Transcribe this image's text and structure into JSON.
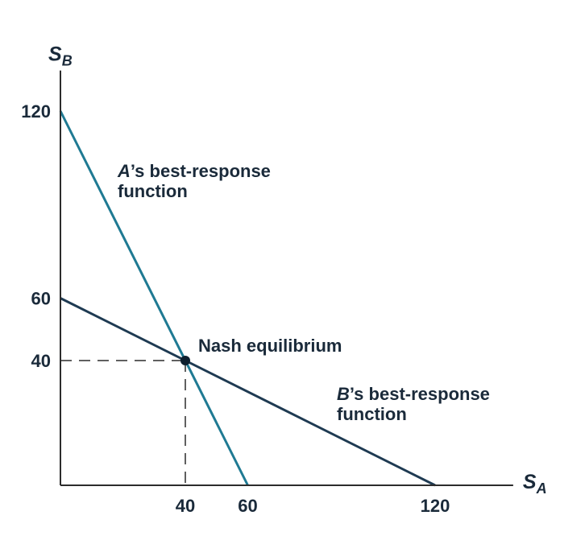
{
  "chart_data": {
    "type": "line",
    "title": "",
    "xlabel": {
      "main": "S",
      "sub": "A"
    },
    "ylabel": {
      "main": "S",
      "sub": "B"
    },
    "xlim": [
      0,
      145
    ],
    "ylim": [
      0,
      133
    ],
    "x_ticks": [
      40,
      60,
      120
    ],
    "y_ticks": [
      40,
      60,
      120
    ],
    "grid": false,
    "legend": "none",
    "series": [
      {
        "line_color": "#1f7a93",
        "points": [
          [
            0,
            120
          ],
          [
            60,
            0
          ]
        ],
        "label": {
          "prefix": "A",
          "rest_line1": "’s best-response",
          "line2": "function"
        }
      },
      {
        "line_color": "#1e3a52",
        "points": [
          [
            0,
            60
          ],
          [
            120,
            0
          ]
        ],
        "label": {
          "prefix": "B",
          "rest_line1": "’s best-response",
          "line2": "function"
        }
      }
    ],
    "equilibrium": {
      "x": 40,
      "y": 40,
      "label": "Nash equilibrium",
      "color": "#0e1f2e"
    },
    "axis_color": "#2c2c2c",
    "dash_color": "#2c2c2c"
  }
}
